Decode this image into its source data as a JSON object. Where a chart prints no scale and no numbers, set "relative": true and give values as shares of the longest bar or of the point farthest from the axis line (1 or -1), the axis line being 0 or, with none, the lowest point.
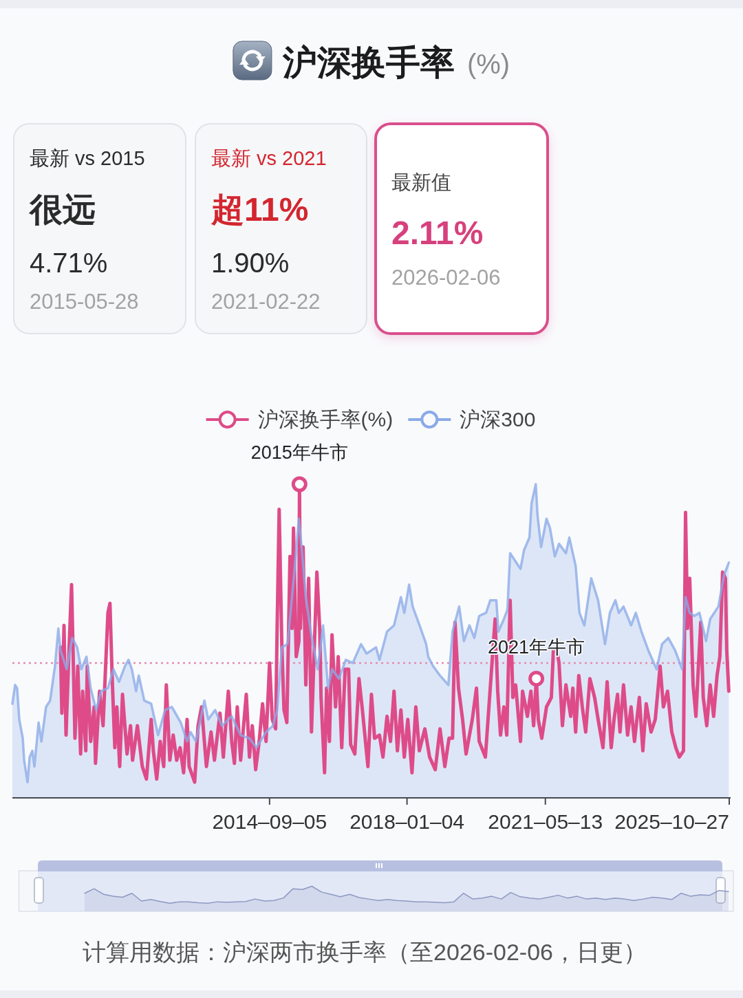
{
  "chart_data": [
    {
      "type": "other",
      "title": "沪深换手率",
      "subtitle": "(%)"
    },
    {
      "type": "other",
      "title": "最新 vs 2015",
      "annotations": [
        "很远",
        "4.71%",
        "2015-05-28"
      ]
    },
    {
      "type": "other",
      "title": "最新 vs 2021",
      "annotations": [
        "超11%",
        "1.90%",
        "2021-02-22"
      ]
    },
    {
      "type": "other",
      "title": "最新值",
      "annotations": [
        "2.11%",
        "2026-02-06"
      ]
    },
    {
      "type": "line",
      "relative": true,
      "xlim": [
        "2008-06-11",
        "2025-10-27"
      ],
      "xticks": [
        {
          "value": "2014-09-05",
          "label": "2014–09–05"
        },
        {
          "value": "2018-01-04",
          "label": "2018–01–04"
        },
        {
          "value": "2021-05-13",
          "label": "2021–05–13"
        },
        {
          "value": "2025-10-27",
          "label": "2025–10–27"
        }
      ],
      "legend": "top",
      "series": [
        {
          "name": "沪深换手率(%)",
          "color": "#de4b88",
          "x": [
            "2009-08-11",
            "2009-08-23",
            "2009-09-11",
            "2009-09-29",
            "2009-10-23",
            "2009-11-17",
            "2009-12-05",
            "2009-12-17",
            "2010-01-11",
            "2010-02-05",
            "2010-02-23",
            "2010-03-23",
            "2010-04-05",
            "2010-05-05",
            "2010-06-05",
            "2010-06-17",
            "2010-07-23",
            "2010-08-23",
            "2010-09-11",
            "2010-10-05",
            "2010-10-23",
            "2010-11-11",
            "2010-12-05",
            "2010-12-23",
            "2011-01-17",
            "2011-02-11",
            "2011-03-23",
            "2011-04-23",
            "2011-05-11",
            "2011-06-23",
            "2011-08-05",
            "2011-09-11",
            "2011-10-23",
            "2011-11-11",
            "2011-12-11",
            "2012-01-11",
            "2012-02-11",
            "2012-03-05",
            "2012-04-05",
            "2012-05-05",
            "2012-06-05",
            "2012-07-05",
            "2012-08-05",
            "2012-09-05",
            "2012-09-23",
            "2012-11-11",
            "2012-12-11",
            "2013-01-11",
            "2013-02-23",
            "2013-04-05",
            "2013-05-05",
            "2013-06-23",
            "2013-07-23",
            "2013-09-05",
            "2013-10-05",
            "2013-10-29",
            "2013-11-23",
            "2013-12-23",
            "2014-02-11",
            "2014-03-11",
            "2014-04-05",
            "2014-05-05",
            "2014-06-05",
            "2014-07-05",
            "2014-08-05",
            "2014-09-05",
            "2014-09-29",
            "2014-10-29",
            "2014-11-11",
            "2014-11-29",
            "2014-12-23",
            "2015-01-11",
            "2015-02-05",
            "2015-03-05",
            "2015-03-23",
            "2015-04-05",
            "2015-04-29",
            "2015-05-23",
            "2015-05-28",
            "2015-06-05",
            "2015-06-29",
            "2015-07-23",
            "2015-08-17",
            "2015-09-11",
            "2015-10-29",
            "2015-11-23",
            "2015-12-05",
            "2016-01-05",
            "2016-01-23",
            "2016-02-17",
            "2016-03-11",
            "2016-04-11",
            "2016-05-05",
            "2016-06-05",
            "2016-07-05",
            "2016-08-05",
            "2016-08-23",
            "2016-09-29",
            "2016-11-05",
            "2016-12-05",
            "2017-01-23",
            "2017-02-23",
            "2017-03-23",
            "2017-05-05",
            "2017-06-05",
            "2017-07-11",
            "2017-08-11",
            "2017-09-11",
            "2017-10-11",
            "2017-11-11",
            "2017-12-11",
            "2018-01-11",
            "2018-02-17",
            "2018-03-23",
            "2018-04-23",
            "2018-06-11",
            "2018-07-23",
            "2018-09-11",
            "2018-10-23",
            "2018-12-05",
            "2019-01-11",
            "2019-02-11",
            "2019-03-05",
            "2019-04-05",
            "2019-05-11",
            "2019-06-11",
            "2019-08-05",
            "2019-09-11",
            "2019-10-05",
            "2019-11-29",
            "2020-01-05",
            "2020-02-23",
            "2020-03-17",
            "2020-04-11",
            "2020-05-11",
            "2020-06-05",
            "2020-07-05",
            "2020-07-29",
            "2020-08-23",
            "2020-10-05",
            "2020-10-23",
            "2020-12-05",
            "2021-01-05",
            "2021-01-29",
            "2021-02-22",
            "2021-03-11",
            "2021-04-11",
            "2021-05-23",
            "2021-07-05",
            "2021-07-23",
            "2021-08-23",
            "2021-09-11",
            "2021-10-11",
            "2021-11-11",
            "2021-12-23",
            "2022-01-11",
            "2022-02-05",
            "2022-03-05",
            "2022-04-05",
            "2022-05-05",
            "2022-06-11",
            "2022-07-23",
            "2022-08-23",
            "2022-10-05",
            "2022-11-11",
            "2022-12-17",
            "2023-01-11",
            "2023-02-11",
            "2023-03-05",
            "2023-04-05",
            "2023-05-11",
            "2023-06-11",
            "2023-07-11",
            "2023-08-23",
            "2023-09-23",
            "2023-10-23",
            "2023-12-05",
            "2024-01-11",
            "2024-02-23",
            "2024-03-23",
            "2024-04-29",
            "2024-06-05",
            "2024-07-11",
            "2024-08-11",
            "2024-09-17",
            "2024-10-05",
            "2024-10-23",
            "2024-11-11",
            "2024-12-11",
            "2025-01-05",
            "2025-01-23",
            "2025-02-17",
            "2025-03-11",
            "2025-04-11",
            "2025-05-11",
            "2025-06-11",
            "2025-07-11",
            "2025-08-05",
            "2025-08-29",
            "2025-09-23",
            "2025-10-05",
            "2025-10-23"
          ],
          "values": [
            0.48,
            0.27,
            0.55,
            0.2,
            0.45,
            0.68,
            0.39,
            0.19,
            0.42,
            0.14,
            0.34,
            0.15,
            0.42,
            0.18,
            0.29,
            0.11,
            0.34,
            0.23,
            0.39,
            0.59,
            0.62,
            0.39,
            0.16,
            0.29,
            0.1,
            0.33,
            0.14,
            0.23,
            0.12,
            0.23,
            0.1,
            0.06,
            0.25,
            0.15,
            0.06,
            0.18,
            0.1,
            0.36,
            0.12,
            0.2,
            0.12,
            0.16,
            0.08,
            0.25,
            0.1,
            0.05,
            0.23,
            0.29,
            0.1,
            0.21,
            0.12,
            0.27,
            0.13,
            0.34,
            0.18,
            0.11,
            0.29,
            0.12,
            0.33,
            0.13,
            0.23,
            0.09,
            0.18,
            0.3,
            0.18,
            0.43,
            0.25,
            0.22,
            0.54,
            0.92,
            0.48,
            0.28,
            0.24,
            0.77,
            0.54,
            0.86,
            0.45,
            0.5,
            1.0,
            0.54,
            0.8,
            0.36,
            0.7,
            0.21,
            0.72,
            0.54,
            0.32,
            0.08,
            0.35,
            0.18,
            0.52,
            0.29,
            0.45,
            0.16,
            0.41,
            0.41,
            0.17,
            0.14,
            0.38,
            0.28,
            0.1,
            0.33,
            0.19,
            0.2,
            0.13,
            0.26,
            0.18,
            0.34,
            0.15,
            0.28,
            0.13,
            0.25,
            0.08,
            0.29,
            0.15,
            0.22,
            0.13,
            0.09,
            0.22,
            0.1,
            0.19,
            0.19,
            0.56,
            0.35,
            0.25,
            0.14,
            0.25,
            0.35,
            0.18,
            0.13,
            0.32,
            0.57,
            0.34,
            0.2,
            0.29,
            0.2,
            0.63,
            0.32,
            0.36,
            0.18,
            0.34,
            0.26,
            0.34,
            0.23,
            0.38,
            0.25,
            0.19,
            0.29,
            0.32,
            0.47,
            0.47,
            0.43,
            0.23,
            0.36,
            0.26,
            0.35,
            0.21,
            0.39,
            0.29,
            0.21,
            0.38,
            0.32,
            0.25,
            0.16,
            0.37,
            0.16,
            0.25,
            0.33,
            0.21,
            0.36,
            0.2,
            0.29,
            0.18,
            0.32,
            0.15,
            0.3,
            0.21,
            0.25,
            0.42,
            0.29,
            0.34,
            0.21,
            0.16,
            0.13,
            0.15,
            0.91,
            0.54,
            0.7,
            0.36,
            0.26,
            0.39,
            0.56,
            0.32,
            0.23,
            0.36,
            0.26,
            0.39,
            0.45,
            0.72,
            0.7,
            0.47,
            0.34
          ]
        },
        {
          "name": "沪深300",
          "type": "area",
          "color": "#8aaae8",
          "x": [
            "2008-06-11",
            "2008-07-05",
            "2008-07-23",
            "2008-08-11",
            "2008-09-11",
            "2008-09-23",
            "2008-10-23",
            "2008-11-11",
            "2008-12-05",
            "2008-12-23",
            "2009-01-29",
            "2009-02-23",
            "2009-04-05",
            "2009-05-11",
            "2009-06-23",
            "2009-07-23",
            "2009-08-11",
            "2009-10-05",
            "2009-11-23",
            "2010-01-05",
            "2010-02-11",
            "2010-03-29",
            "2010-05-05",
            "2010-06-23",
            "2010-08-05",
            "2010-10-05",
            "2010-11-23",
            "2011-01-11",
            "2011-03-05",
            "2011-04-05",
            "2011-05-05",
            "2011-06-11",
            "2011-07-05",
            "2011-08-23",
            "2011-10-23",
            "2011-12-23",
            "2012-02-23",
            "2012-04-23",
            "2012-07-11",
            "2012-09-05",
            "2012-10-05",
            "2012-11-23",
            "2013-02-05",
            "2013-03-11",
            "2013-05-11",
            "2013-07-11",
            "2013-10-05",
            "2013-12-23",
            "2014-03-11",
            "2014-05-11",
            "2014-08-05",
            "2014-10-05",
            "2014-11-11",
            "2014-12-23",
            "2015-02-11",
            "2015-04-05",
            "2015-05-23",
            "2015-06-23",
            "2015-07-23",
            "2015-09-05",
            "2015-11-05",
            "2015-12-23",
            "2016-02-05",
            "2016-03-11",
            "2016-05-11",
            "2016-07-11",
            "2016-09-11",
            "2016-11-23",
            "2017-01-11",
            "2017-04-05",
            "2017-05-05",
            "2017-07-11",
            "2017-09-11",
            "2017-11-11",
            "2017-12-11",
            "2018-01-23",
            "2018-02-23",
            "2018-04-05",
            "2018-05-05",
            "2018-06-23",
            "2018-07-11",
            "2018-08-23",
            "2018-10-23",
            "2019-01-05",
            "2019-02-11",
            "2019-04-11",
            "2019-05-23",
            "2019-07-11",
            "2019-08-23",
            "2019-10-05",
            "2019-12-05",
            "2020-01-11",
            "2020-03-05",
            "2020-03-23",
            "2020-05-11",
            "2020-06-11",
            "2020-07-05",
            "2020-08-11",
            "2020-10-05",
            "2020-11-05",
            "2020-12-23",
            "2021-01-11",
            "2021-02-17",
            "2021-03-05",
            "2021-04-05",
            "2021-05-23",
            "2021-06-23",
            "2021-08-05",
            "2021-09-11",
            "2021-11-11",
            "2021-12-11",
            "2022-02-05",
            "2022-03-11",
            "2022-04-23",
            "2022-06-23",
            "2022-08-23",
            "2022-10-23",
            "2022-12-05",
            "2023-01-23",
            "2023-02-23",
            "2023-04-05",
            "2023-06-11",
            "2023-07-23",
            "2023-09-11",
            "2023-11-11",
            "2024-01-23",
            "2024-03-11",
            "2024-05-05",
            "2024-07-05",
            "2024-09-05",
            "2024-10-05",
            "2024-11-11",
            "2024-12-23",
            "2025-02-05",
            "2025-04-05",
            "2025-05-11",
            "2025-07-23",
            "2025-09-11",
            "2025-10-23"
          ],
          "values": [
            0.3,
            0.36,
            0.35,
            0.25,
            0.19,
            0.12,
            0.05,
            0.13,
            0.15,
            0.1,
            0.24,
            0.18,
            0.29,
            0.31,
            0.42,
            0.54,
            0.47,
            0.41,
            0.51,
            0.48,
            0.41,
            0.45,
            0.35,
            0.28,
            0.34,
            0.35,
            0.41,
            0.37,
            0.42,
            0.44,
            0.41,
            0.34,
            0.39,
            0.31,
            0.3,
            0.2,
            0.28,
            0.29,
            0.24,
            0.18,
            0.21,
            0.18,
            0.31,
            0.25,
            0.28,
            0.23,
            0.26,
            0.2,
            0.19,
            0.16,
            0.21,
            0.23,
            0.28,
            0.48,
            0.49,
            0.69,
            0.89,
            0.77,
            0.64,
            0.53,
            0.41,
            0.55,
            0.35,
            0.41,
            0.38,
            0.44,
            0.43,
            0.49,
            0.46,
            0.48,
            0.44,
            0.53,
            0.55,
            0.64,
            0.59,
            0.68,
            0.61,
            0.57,
            0.54,
            0.49,
            0.45,
            0.42,
            0.39,
            0.36,
            0.53,
            0.61,
            0.5,
            0.55,
            0.51,
            0.58,
            0.59,
            0.63,
            0.63,
            0.53,
            0.57,
            0.6,
            0.78,
            0.76,
            0.73,
            0.79,
            0.83,
            0.94,
            1.0,
            0.9,
            0.8,
            0.89,
            0.86,
            0.77,
            0.81,
            0.78,
            0.83,
            0.74,
            0.59,
            0.55,
            0.7,
            0.63,
            0.49,
            0.59,
            0.63,
            0.59,
            0.61,
            0.55,
            0.59,
            0.53,
            0.47,
            0.41,
            0.49,
            0.51,
            0.47,
            0.41,
            0.64,
            0.59,
            0.58,
            0.59,
            0.5,
            0.57,
            0.61,
            0.71,
            0.75
          ]
        }
      ],
      "ref_lines": [
        {
          "axis": "y",
          "value": 0.43,
          "color": "#e58cb1",
          "line_style": "dotted"
        }
      ],
      "annotations": [
        {
          "text": "2015年牛市",
          "x": "2015-05-28",
          "y": 1.0
        },
        {
          "text": "2021年牛市",
          "x": "2021-02-22",
          "y": 0.38
        },
        "计算用数据：沪深两市换手率（至2026-02-06，日更）"
      ]
    },
    {
      "type": "line",
      "relative": true,
      "categories": [
        null,
        null,
        null,
        null,
        null,
        null,
        null,
        null,
        null,
        null,
        null,
        null,
        null,
        null,
        null,
        null,
        null,
        null,
        null,
        null,
        null,
        null,
        null,
        null,
        null,
        null,
        null,
        null,
        null,
        null,
        null,
        null,
        null,
        null,
        null,
        null,
        null,
        null,
        null,
        null,
        null,
        null,
        null,
        null,
        null,
        null,
        null,
        null,
        null,
        null,
        null,
        null,
        null,
        null,
        null,
        null,
        null,
        null,
        null,
        null,
        null,
        null,
        null,
        null,
        null,
        null,
        null,
        null,
        null
      ],
      "series": [
        {
          "type": "area",
          "color": "#8d98c2",
          "values": [
            0.72,
            0.9,
            0.68,
            0.6,
            0.56,
            0.72,
            0.41,
            0.47,
            0.39,
            0.32,
            0.38,
            0.38,
            0.34,
            0.32,
            0.38,
            0.36,
            0.38,
            0.39,
            0.49,
            0.41,
            0.43,
            0.53,
            0.9,
            0.87,
            1.0,
            0.77,
            0.68,
            0.58,
            0.68,
            0.55,
            0.49,
            0.43,
            0.47,
            0.43,
            0.41,
            0.38,
            0.38,
            0.36,
            0.34,
            0.38,
            0.72,
            0.49,
            0.53,
            0.6,
            0.49,
            0.75,
            0.58,
            0.53,
            0.49,
            0.56,
            0.64,
            0.53,
            0.6,
            0.49,
            0.53,
            0.47,
            0.53,
            0.49,
            0.43,
            0.49,
            0.56,
            0.53,
            0.47,
            0.72,
            0.6,
            0.66,
            0.64,
            0.83,
            0.79
          ]
        }
      ]
    }
  ]
}
